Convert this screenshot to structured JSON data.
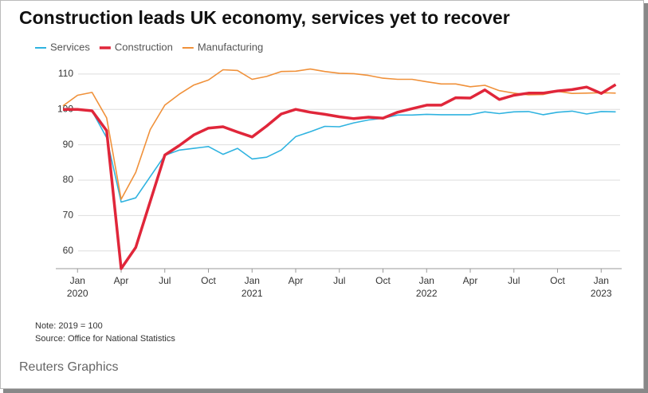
{
  "chart_data": {
    "type": "line",
    "title": "Construction leads UK economy, services yet to recover",
    "x": [
      "2019-12",
      "2020-01",
      "2020-02",
      "2020-03",
      "2020-04",
      "2020-05",
      "2020-06",
      "2020-07",
      "2020-08",
      "2020-09",
      "2020-10",
      "2020-11",
      "2020-12",
      "2021-01",
      "2021-02",
      "2021-03",
      "2021-04",
      "2021-05",
      "2021-06",
      "2021-07",
      "2021-08",
      "2021-09",
      "2021-10",
      "2021-11",
      "2021-12",
      "2022-01",
      "2022-02",
      "2022-03",
      "2022-04",
      "2022-05",
      "2022-06",
      "2022-07",
      "2022-08",
      "2022-09",
      "2022-10",
      "2022-11",
      "2022-12",
      "2023-01",
      "2023-02"
    ],
    "series": [
      {
        "name": "Services",
        "color": "#2fb3e0",
        "width": 1.6,
        "values": [
          100,
          100,
          99.5,
          92,
          73.8,
          75,
          81,
          87,
          88.5,
          89,
          89.5,
          87.3,
          89,
          86,
          86.5,
          88.5,
          92.3,
          93.7,
          95.2,
          95.1,
          96.2,
          97,
          97.5,
          98.4,
          98.4,
          98.6,
          98.5,
          98.5,
          98.5,
          99.3,
          98.8,
          99.3,
          99.4,
          98.5,
          99.2,
          99.5,
          98.7,
          99.4,
          99.3
        ]
      },
      {
        "name": "Construction",
        "color": "#e0263a",
        "width": 3.5,
        "values": [
          100,
          100,
          99.6,
          94,
          55,
          61,
          74,
          87.1,
          89.8,
          92.8,
          94.7,
          95.1,
          93.6,
          92.2,
          95.3,
          98.7,
          100,
          99.2,
          98.6,
          97.9,
          97.4,
          97.8,
          97.5,
          99.2,
          100.2,
          101.2,
          101.2,
          103.3,
          103.2,
          105.5,
          102.8,
          104,
          104.6,
          104.6,
          105.2,
          105.6,
          106.3,
          104.5,
          107
        ]
      },
      {
        "name": "Manufacturing",
        "color": "#f0913a",
        "width": 1.6,
        "values": [
          101,
          104,
          104.8,
          97.6,
          74.6,
          82.2,
          94.3,
          101.2,
          104.3,
          106.9,
          108.3,
          111.2,
          111,
          108.5,
          109.3,
          110.7,
          110.8,
          111.4,
          110.7,
          110.2,
          110.1,
          109.6,
          108.8,
          108.5,
          108.5,
          107.8,
          107.2,
          107.2,
          106.4,
          106.8,
          105.3,
          104.6,
          104.1,
          104.2,
          105.1,
          104.5,
          104.6,
          104.7,
          104.6
        ]
      }
    ],
    "ylim": [
      55,
      113
    ],
    "yticks": [
      60,
      70,
      80,
      90,
      100,
      110
    ],
    "xticks": [
      {
        "value": "2020-01",
        "label": "Jan"
      },
      {
        "value": "2020-04",
        "label": "Apr"
      },
      {
        "value": "2020-07",
        "label": "Jul"
      },
      {
        "value": "2020-10",
        "label": "Oct"
      },
      {
        "value": "2021-01",
        "label": "Jan"
      },
      {
        "value": "2021-04",
        "label": "Apr"
      },
      {
        "value": "2021-07",
        "label": "Jul"
      },
      {
        "value": "2021-10",
        "label": "Oct"
      },
      {
        "value": "2022-01",
        "label": "Jan"
      },
      {
        "value": "2022-04",
        "label": "Apr"
      },
      {
        "value": "2022-07",
        "label": "Jul"
      },
      {
        "value": "2022-10",
        "label": "Oct"
      },
      {
        "value": "2023-01",
        "label": "Jan"
      }
    ],
    "xtick_years": [
      {
        "value": "2020-01",
        "label": "2020"
      },
      {
        "value": "2021-01",
        "label": "2021"
      },
      {
        "value": "2022-01",
        "label": "2022"
      },
      {
        "value": "2023-01",
        "label": "2023"
      }
    ],
    "grid": true,
    "notes": [
      "Note: 2019 = 100",
      "Source: Office for National Statistics"
    ],
    "credit": "Reuters Graphics"
  }
}
